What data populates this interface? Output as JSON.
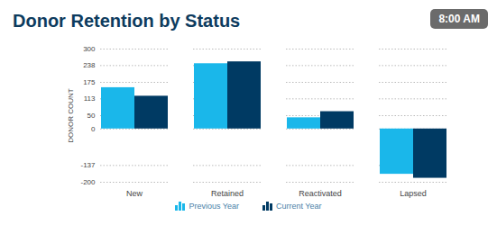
{
  "chart_data": {
    "type": "bar",
    "title": "Donor Retention by Status",
    "annotations": [
      "8:00 AM"
    ],
    "ylabel": "DONOR COUNT",
    "categories": [
      "New",
      "Retained",
      "Reactivated",
      "Lapsed"
    ],
    "series": [
      {
        "name": "Previous Year",
        "color": "#1ab7ea",
        "values": [
          155,
          245,
          42,
          -170
        ]
      },
      {
        "name": "Current Year",
        "color": "#003a63",
        "values": [
          123,
          252,
          65,
          -185
        ]
      }
    ],
    "ylim": [
      -200,
      300
    ],
    "yticks": [
      -200,
      -137,
      0,
      50,
      113,
      175,
      238,
      300
    ],
    "grid": true,
    "legend": "bottom"
  }
}
